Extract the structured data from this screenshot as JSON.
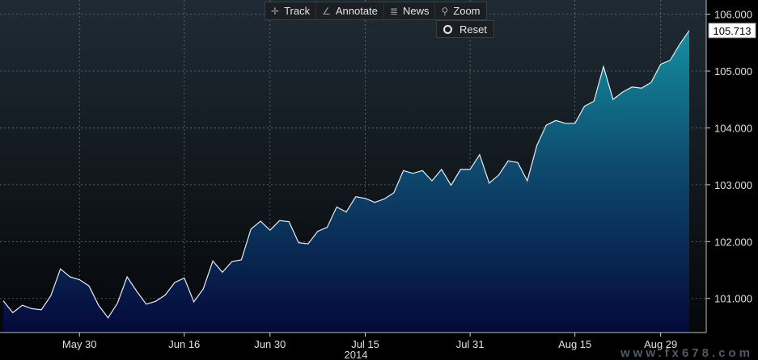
{
  "toolbar": {
    "track_label": "Track",
    "annotate_label": "Annotate",
    "news_label": "News",
    "zoom_label": "Zoom",
    "reset_label": "Reset"
  },
  "watermark": "www.fx678.com",
  "chart_data": {
    "type": "area",
    "title": "",
    "xlabel": "2014",
    "ylabel": "",
    "ylim": [
      100.4,
      106.25
    ],
    "grid": true,
    "last_value_label": "105.713",
    "y_ticks": [
      101,
      102,
      103,
      104,
      105,
      106
    ],
    "y_tick_labels": [
      "101.000",
      "102.000",
      "103.000",
      "104.000",
      "105.000",
      "106.000"
    ],
    "x_tick_labels": [
      "May 30",
      "Jun 16",
      "Jun 30",
      "Jul 15",
      "Jul 31",
      "Aug 15",
      "Aug 29"
    ],
    "x_tick_index": [
      8,
      19,
      28,
      38,
      49,
      60,
      69
    ],
    "values": [
      100.96,
      100.75,
      100.88,
      100.82,
      100.8,
      101.05,
      101.52,
      101.38,
      101.33,
      101.22,
      100.88,
      100.66,
      100.92,
      101.38,
      101.13,
      100.9,
      100.95,
      101.06,
      101.28,
      101.36,
      100.94,
      101.17,
      101.66,
      101.46,
      101.65,
      101.68,
      102.22,
      102.36,
      102.2,
      102.37,
      102.35,
      101.98,
      101.96,
      102.18,
      102.25,
      102.61,
      102.52,
      102.79,
      102.76,
      102.69,
      102.75,
      102.86,
      103.25,
      103.2,
      103.25,
      103.07,
      103.27,
      102.99,
      103.27,
      103.27,
      103.53,
      103.03,
      103.17,
      103.42,
      103.39,
      103.07,
      103.69,
      104.05,
      104.13,
      104.08,
      104.08,
      104.38,
      104.47,
      105.08,
      104.5,
      104.63,
      104.72,
      104.7,
      104.8,
      105.12,
      105.19,
      105.47,
      105.713
    ]
  }
}
